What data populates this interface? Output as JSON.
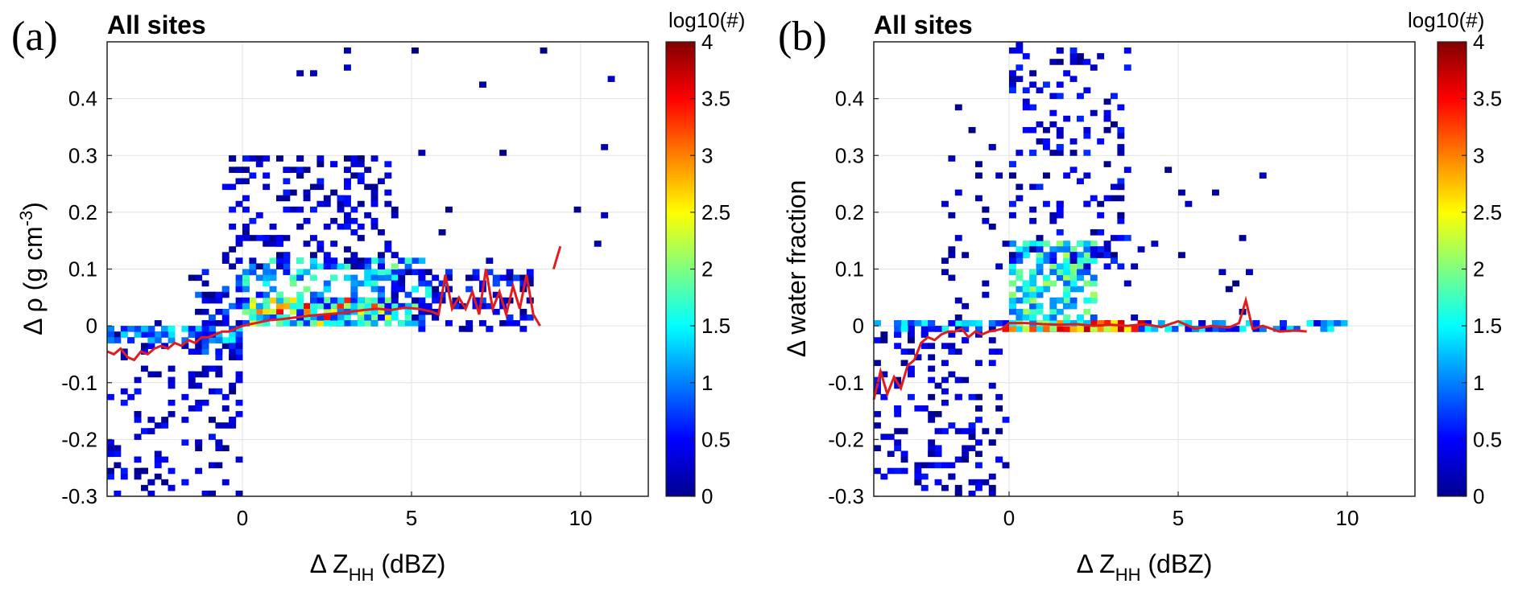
{
  "chart_data": [
    {
      "type": "heatmap",
      "panel_label": "(a)",
      "title": "All sites",
      "xlabel_prefix": "Δ Z",
      "xlabel_sub": "HH",
      "xlabel_suffix": " (dBZ)",
      "ylabel_prefix": "Δ ρ (g cm",
      "ylabel_sup": "-3",
      "ylabel_suffix": ")",
      "xlim": [
        -4,
        12
      ],
      "ylim": [
        -0.3,
        0.5
      ],
      "xticks": [
        0,
        5,
        10
      ],
      "yticks": [
        -0.3,
        -0.2,
        -0.1,
        0,
        0.1,
        0.2,
        0.3,
        0.4
      ],
      "colorbar": {
        "label": "log10(#)",
        "range": [
          0,
          4
        ],
        "ticks": [
          0,
          0.5,
          1,
          1.5,
          2,
          2.5,
          3,
          3.5,
          4
        ]
      },
      "grid": true,
      "median_line": {
        "color": "#e41a1c",
        "x": [
          -4,
          -3.8,
          -3.6,
          -3.4,
          -3.2,
          -3.0,
          -2.8,
          -2.6,
          -2.4,
          -2.2,
          -2.0,
          -1.8,
          -1.6,
          -1.4,
          -1.2,
          -1.0,
          -0.8,
          -0.6,
          -0.4,
          -0.2,
          0.0,
          0.4,
          0.8,
          1.2,
          1.6,
          2.0,
          2.4,
          2.8,
          3.2,
          3.6,
          4.0,
          4.4,
          4.8,
          5.2,
          5.6,
          5.8,
          6.0,
          6.2,
          6.4,
          6.6,
          6.8,
          7.0,
          7.2,
          7.4,
          7.6,
          7.8,
          8.0,
          8.2,
          8.4,
          8.6,
          8.8
        ],
        "y": [
          -0.045,
          -0.05,
          -0.04,
          -0.055,
          -0.06,
          -0.045,
          -0.05,
          -0.04,
          -0.035,
          -0.04,
          -0.03,
          -0.035,
          -0.025,
          -0.03,
          -0.02,
          -0.02,
          -0.015,
          -0.01,
          -0.01,
          -0.005,
          0.0,
          0.005,
          0.01,
          0.012,
          0.015,
          0.018,
          0.02,
          0.022,
          0.025,
          0.028,
          0.03,
          0.028,
          0.032,
          0.03,
          0.025,
          0.02,
          0.09,
          0.03,
          0.05,
          0.03,
          0.06,
          0.02,
          0.1,
          0.03,
          0.06,
          0.02,
          0.07,
          0.03,
          0.09,
          0.02,
          0.0
        ]
      },
      "median_segment": {
        "x": [
          9.2,
          9.4
        ],
        "y": [
          0.1,
          0.14
        ]
      },
      "cloud": [
        {
          "x0": -4,
          "x1": 0,
          "y0": -0.3,
          "y1": 0.01,
          "n": 140,
          "lo": 0,
          "hi": 0.6
        },
        {
          "x0": -4,
          "x1": 0,
          "y0": -0.03,
          "y1": 0.0,
          "n": 60,
          "lo": 0.4,
          "hi": 1.6
        },
        {
          "x0": -1.5,
          "x1": 0,
          "y0": -0.05,
          "y1": 0.1,
          "n": 50,
          "lo": 0,
          "hi": 1.0
        },
        {
          "x0": 0,
          "x1": 4.5,
          "y0": 0.0,
          "y1": 0.05,
          "n": 160,
          "lo": 1.5,
          "hi": 3.6
        },
        {
          "x0": 0,
          "x1": 5.5,
          "y0": 0.0,
          "y1": 0.12,
          "n": 220,
          "lo": 0.5,
          "hi": 2.0
        },
        {
          "x0": -0.5,
          "x1": 4.5,
          "y0": 0.1,
          "y1": 0.3,
          "n": 170,
          "lo": 0,
          "hi": 0.6
        },
        {
          "x0": 4.0,
          "x1": 8.6,
          "y0": -0.01,
          "y1": 0.1,
          "n": 110,
          "lo": 0,
          "hi": 0.8
        },
        {
          "x0": 0.5,
          "x1": 11,
          "y0": 0.1,
          "y1": 0.5,
          "n": 20,
          "lo": 0,
          "hi": 0.3
        }
      ]
    },
    {
      "type": "heatmap",
      "panel_label": "(b)",
      "title": "All sites",
      "xlabel_prefix": "Δ Z",
      "xlabel_sub": "HH",
      "xlabel_suffix": " (dBZ)",
      "ylabel_prefix": "Δ water fraction",
      "ylabel_sup": "",
      "ylabel_suffix": "",
      "xlim": [
        -4,
        12
      ],
      "ylim": [
        -0.3,
        0.5
      ],
      "xticks": [
        0,
        5,
        10
      ],
      "yticks": [
        -0.3,
        -0.2,
        -0.1,
        0,
        0.1,
        0.2,
        0.3,
        0.4
      ],
      "colorbar": {
        "label": "log10(#)",
        "range": [
          0,
          4
        ],
        "ticks": [
          0,
          0.5,
          1,
          1.5,
          2,
          2.5,
          3,
          3.5,
          4
        ]
      },
      "grid": true,
      "median_line": {
        "color": "#e41a1c",
        "x": [
          -4,
          -3.8,
          -3.6,
          -3.4,
          -3.2,
          -3.0,
          -2.8,
          -2.6,
          -2.4,
          -2.2,
          -2.0,
          -1.8,
          -1.6,
          -1.4,
          -1.2,
          -1.0,
          -0.8,
          -0.6,
          -0.4,
          -0.2,
          0.0,
          0.5,
          1.0,
          1.5,
          2.0,
          2.5,
          3.0,
          3.5,
          4.0,
          4.5,
          5.0,
          5.5,
          6.0,
          6.5,
          6.8,
          7.0,
          7.2,
          7.5,
          8.0,
          8.5,
          8.8
        ],
        "y": [
          -0.13,
          -0.08,
          -0.12,
          -0.09,
          -0.11,
          -0.07,
          -0.06,
          -0.03,
          -0.02,
          -0.025,
          -0.015,
          -0.01,
          -0.01,
          -0.005,
          -0.02,
          -0.01,
          -0.015,
          -0.01,
          -0.008,
          -0.005,
          0.005,
          0.005,
          0.003,
          0.002,
          0.003,
          0.0,
          0.002,
          0.0,
          0.003,
          -0.002,
          0.008,
          -0.005,
          0.0,
          -0.003,
          0.005,
          0.045,
          -0.005,
          0.0,
          -0.01,
          -0.008,
          -0.01
        ]
      },
      "cloud": [
        {
          "x0": -4,
          "x1": 0,
          "y0": -0.3,
          "y1": 0.0,
          "n": 160,
          "lo": 0,
          "hi": 0.6
        },
        {
          "x0": -4,
          "x1": 10,
          "y0": -0.01,
          "y1": 0.01,
          "n": 120,
          "lo": 0.3,
          "hi": 1.6
        },
        {
          "x0": -0.2,
          "x1": 4.0,
          "y0": -0.01,
          "y1": 0.01,
          "n": 80,
          "lo": 1.8,
          "hi": 3.8
        },
        {
          "x0": 0,
          "x1": 2.5,
          "y0": 0.0,
          "y1": 0.15,
          "n": 200,
          "lo": 0.8,
          "hi": 2.2
        },
        {
          "x0": 0,
          "x1": 3.5,
          "y0": 0.1,
          "y1": 0.5,
          "n": 150,
          "lo": 0,
          "hi": 0.7
        },
        {
          "x0": -2,
          "x1": 0,
          "y0": 0.0,
          "y1": 0.4,
          "n": 30,
          "lo": 0,
          "hi": 0.3
        },
        {
          "x0": 3,
          "x1": 7.5,
          "y0": 0.0,
          "y1": 0.3,
          "n": 20,
          "lo": 0,
          "hi": 0.3
        }
      ]
    }
  ]
}
